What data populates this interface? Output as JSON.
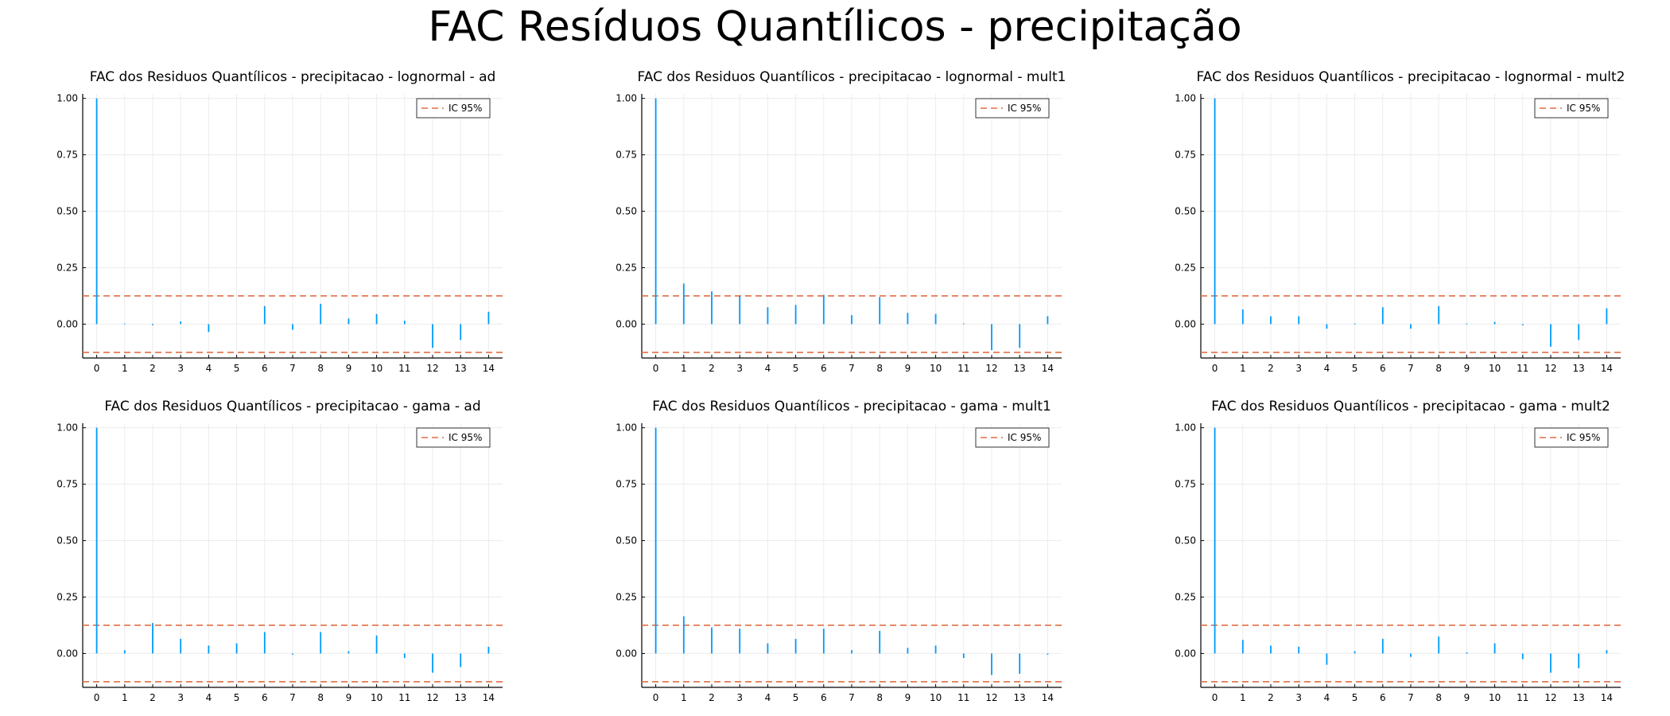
{
  "figure": {
    "title": "FAC Resíduos Quantílicos - precipitação"
  },
  "colors": {
    "bar": "#009AFA",
    "ci": "#E26F46",
    "grid": "#ececec",
    "axis": "#000000"
  },
  "chart_data": [
    {
      "type": "bar",
      "title": "FAC dos Residuos Quantílicos - precipitacao - lognormal - ad",
      "x": [
        0,
        1,
        2,
        3,
        4,
        5,
        6,
        7,
        8,
        9,
        10,
        11,
        12,
        13,
        14
      ],
      "values": [
        1.0,
        0.003,
        -0.005,
        0.012,
        -0.035,
        0.0,
        0.08,
        -0.025,
        0.09,
        0.025,
        0.045,
        0.015,
        -0.105,
        -0.07,
        0.055
      ],
      "confidence_band": 0.125,
      "legend": [
        "IC 95%"
      ],
      "legend_position": "top-right",
      "xticks": [
        "0",
        "1",
        "2",
        "3",
        "4",
        "5",
        "6",
        "7",
        "8",
        "9",
        "10",
        "11",
        "12",
        "13",
        "14"
      ],
      "yticks": [
        "0.00",
        "0.25",
        "0.50",
        "0.75",
        "1.00"
      ],
      "ylim": [
        -0.15,
        1.02
      ],
      "grid": true
    },
    {
      "type": "bar",
      "title": "FAC dos Residuos Quantílicos - precipitacao - lognormal - mult1",
      "x": [
        0,
        1,
        2,
        3,
        4,
        5,
        6,
        7,
        8,
        9,
        10,
        11,
        12,
        13,
        14
      ],
      "values": [
        1.0,
        0.18,
        0.145,
        0.125,
        0.075,
        0.085,
        0.13,
        0.04,
        0.12,
        0.05,
        0.045,
        0.003,
        -0.115,
        -0.105,
        0.035
      ],
      "confidence_band": 0.125,
      "legend": [
        "IC 95%"
      ],
      "legend_position": "top-right",
      "xticks": [
        "0",
        "1",
        "2",
        "3",
        "4",
        "5",
        "6",
        "7",
        "8",
        "9",
        "10",
        "11",
        "12",
        "13",
        "14"
      ],
      "yticks": [
        "0.00",
        "0.25",
        "0.50",
        "0.75",
        "1.00"
      ],
      "ylim": [
        -0.15,
        1.02
      ],
      "grid": true
    },
    {
      "type": "bar",
      "title": "FAC dos Residuos Quantílicos - precipitacao - lognormal - mult2",
      "x": [
        0,
        1,
        2,
        3,
        4,
        5,
        6,
        7,
        8,
        9,
        10,
        11,
        12,
        13,
        14
      ],
      "values": [
        1.0,
        0.065,
        0.035,
        0.035,
        -0.02,
        0.003,
        0.075,
        -0.02,
        0.08,
        0.003,
        0.01,
        -0.005,
        -0.1,
        -0.07,
        0.07
      ],
      "confidence_band": 0.125,
      "legend": [
        "IC 95%"
      ],
      "legend_position": "top-right",
      "xticks": [
        "0",
        "1",
        "2",
        "3",
        "4",
        "5",
        "6",
        "7",
        "8",
        "9",
        "10",
        "11",
        "12",
        "13",
        "14"
      ],
      "yticks": [
        "0.00",
        "0.25",
        "0.50",
        "0.75",
        "1.00"
      ],
      "ylim": [
        -0.15,
        1.02
      ],
      "grid": true
    },
    {
      "type": "bar",
      "title": "FAC dos Residuos Quantílicos - precipitacao - gama - ad",
      "x": [
        0,
        1,
        2,
        3,
        4,
        5,
        6,
        7,
        8,
        9,
        10,
        11,
        12,
        13,
        14
      ],
      "values": [
        1.0,
        0.015,
        0.135,
        0.065,
        0.035,
        0.045,
        0.095,
        -0.005,
        0.095,
        0.01,
        0.08,
        -0.02,
        -0.085,
        -0.06,
        0.03
      ],
      "confidence_band": 0.125,
      "legend": [
        "IC 95%"
      ],
      "legend_position": "top-right",
      "xticks": [
        "0",
        "1",
        "2",
        "3",
        "4",
        "5",
        "6",
        "7",
        "8",
        "9",
        "10",
        "11",
        "12",
        "13",
        "14"
      ],
      "yticks": [
        "0.00",
        "0.25",
        "0.50",
        "0.75",
        "1.00"
      ],
      "ylim": [
        -0.15,
        1.02
      ],
      "grid": true
    },
    {
      "type": "bar",
      "title": "FAC dos Residuos Quantílicos - precipitacao - gama - mult1",
      "x": [
        0,
        1,
        2,
        3,
        4,
        5,
        6,
        7,
        8,
        9,
        10,
        11,
        12,
        13,
        14
      ],
      "values": [
        1.0,
        0.165,
        0.115,
        0.11,
        0.045,
        0.065,
        0.11,
        0.015,
        0.1,
        0.025,
        0.035,
        -0.02,
        -0.095,
        -0.09,
        -0.005
      ],
      "confidence_band": 0.125,
      "legend": [
        "IC 95%"
      ],
      "legend_position": "top-right",
      "xticks": [
        "0",
        "1",
        "2",
        "3",
        "4",
        "5",
        "6",
        "7",
        "8",
        "9",
        "10",
        "11",
        "12",
        "13",
        "14"
      ],
      "yticks": [
        "0.00",
        "0.25",
        "0.50",
        "0.75",
        "1.00"
      ],
      "ylim": [
        -0.15,
        1.02
      ],
      "grid": true
    },
    {
      "type": "bar",
      "title": "FAC dos Residuos Quantílicos - precipitacao - gama - mult2",
      "x": [
        0,
        1,
        2,
        3,
        4,
        5,
        6,
        7,
        8,
        9,
        10,
        11,
        12,
        13,
        14
      ],
      "values": [
        1.0,
        0.06,
        0.035,
        0.03,
        -0.05,
        0.01,
        0.065,
        -0.015,
        0.075,
        0.005,
        0.045,
        -0.025,
        -0.085,
        -0.065,
        0.015
      ],
      "confidence_band": 0.125,
      "legend": [
        "IC 95%"
      ],
      "legend_position": "top-right",
      "xticks": [
        "0",
        "1",
        "2",
        "3",
        "4",
        "5",
        "6",
        "7",
        "8",
        "9",
        "10",
        "11",
        "12",
        "13",
        "14"
      ],
      "yticks": [
        "0.00",
        "0.25",
        "0.50",
        "0.75",
        "1.00"
      ],
      "ylim": [
        -0.15,
        1.02
      ],
      "grid": true
    }
  ]
}
